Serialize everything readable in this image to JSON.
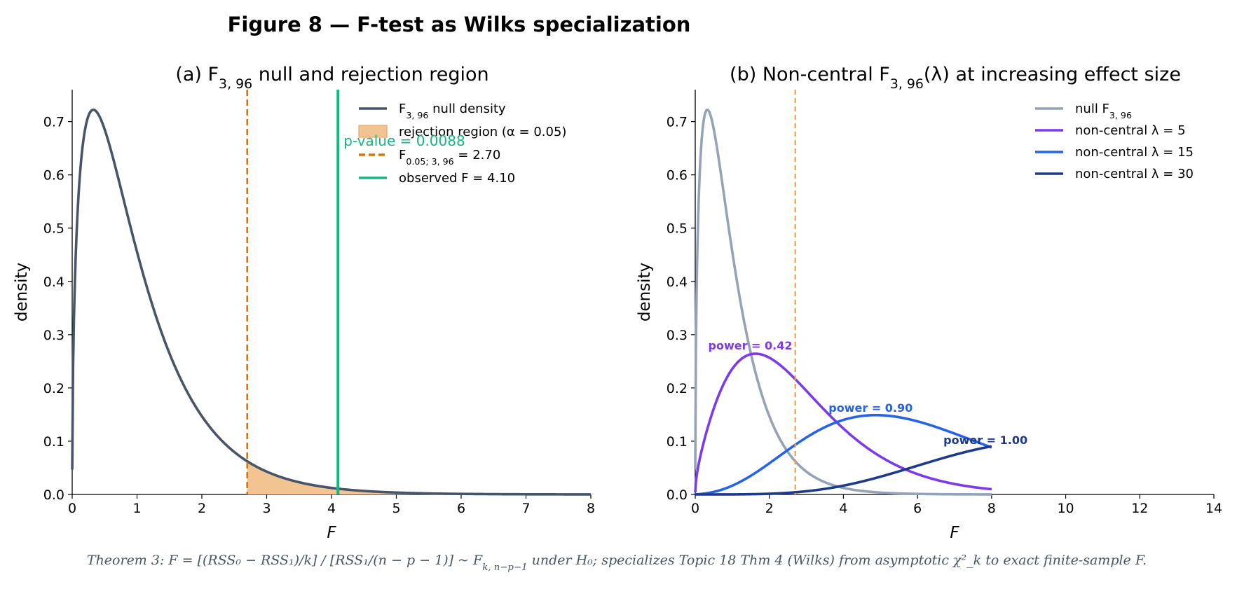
{
  "figure": {
    "title": "Figure 8 — F-test as Wilks specialization",
    "footnote": "Theorem 3: F = [(RSS₀ − RSS₁)/k] / [RSS₁/(n − p − 1)] ~ F_{k, n−p−1}   under H₀;  specializes Topic 18 Thm 4 (Wilks) from asymptotic χ²_k to exact finite-sample F."
  },
  "chart_data": [
    {
      "id": "a",
      "type": "line",
      "title": "(a) F_{3, 96} null and rejection region",
      "xlabel": "F",
      "ylabel": "density",
      "xlim": [
        0,
        8
      ],
      "ylim": [
        0,
        0.76
      ],
      "xticks": [
        "0",
        "1",
        "2",
        "3",
        "4",
        "5",
        "6",
        "7",
        "8"
      ],
      "yticks": [
        "0.0",
        "0.1",
        "0.2",
        "0.3",
        "0.4",
        "0.5",
        "0.6",
        "0.7"
      ],
      "df1": 3,
      "df2": 96,
      "x_range": [
        0,
        8
      ],
      "critical_value": 2.7,
      "observed_F": 4.1,
      "legend": {
        "placement": "top-right",
        "entries": [
          {
            "label": "F_{3, 96} null density",
            "color": "#475569",
            "style": "solid"
          },
          {
            "label": "rejection region (α = 0.05)",
            "color": "#f1c492",
            "style": "patch"
          },
          {
            "label": "F_{0.05; 3, 96} = 2.70",
            "color": "#d97706",
            "style": "dashed"
          },
          {
            "label": "observed F = 4.10",
            "color": "#10b981",
            "style": "solid"
          }
        ]
      },
      "annotations": [
        {
          "text": "p-value = 0.0088",
          "color": "#10b981",
          "x": 4.1,
          "y": 0.655
        }
      ]
    },
    {
      "id": "b",
      "type": "line",
      "title": "(b) Non-central F_{3, 96}(λ) at increasing effect size",
      "xlabel": "F",
      "ylabel": "density",
      "xlim": [
        0,
        14
      ],
      "ylim": [
        0,
        0.76
      ],
      "xticks": [
        "0",
        "2",
        "4",
        "6",
        "8",
        "10",
        "12",
        "14"
      ],
      "yticks": [
        "0.0",
        "0.1",
        "0.2",
        "0.3",
        "0.4",
        "0.5",
        "0.6",
        "0.7"
      ],
      "df1": 3,
      "df2": 96,
      "x_range": [
        0,
        8
      ],
      "critical_value": 2.7,
      "series": [
        {
          "name": "null F_{3, 96}",
          "lambda": 0,
          "color": "#94a3b8"
        },
        {
          "name": "non-central λ = 5",
          "lambda": 5,
          "color": "#7c3aed"
        },
        {
          "name": "non-central λ = 15",
          "lambda": 15,
          "color": "#2563eb"
        },
        {
          "name": "non-central λ = 30",
          "lambda": 30,
          "color": "#1e3a8a"
        }
      ],
      "legend": {
        "placement": "top-right"
      },
      "annotations": [
        {
          "text": "power = 0.42",
          "color": "#7c3aed",
          "x": 0.35,
          "y": 0.272
        },
        {
          "text": "power = 0.90",
          "color": "#2563eb",
          "x": 3.6,
          "y": 0.155
        },
        {
          "text": "power = 1.00",
          "color": "#1e3a8a",
          "x": 6.7,
          "y": 0.095
        }
      ]
    }
  ]
}
